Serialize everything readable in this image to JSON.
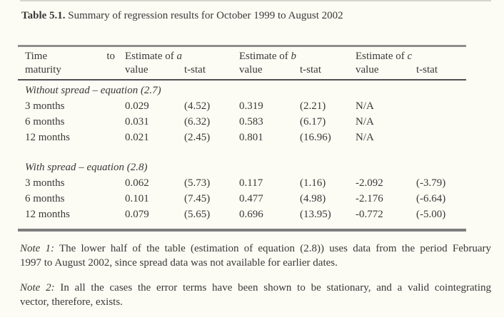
{
  "title": {
    "label": "Table 5.1.",
    "text": "Summary of regression results for October 1999 to August 2002"
  },
  "table": {
    "header": {
      "time": {
        "word1": "Time",
        "word2": "to",
        "line2": "maturity"
      },
      "groups": [
        {
          "label": "Estimate of",
          "var": "a"
        },
        {
          "label": "Estimate of",
          "var": "b"
        },
        {
          "label": "Estimate of",
          "var": "c"
        }
      ],
      "sub": {
        "value": "value",
        "tstat": "t-stat"
      }
    },
    "sections": [
      {
        "heading": "Without spread – equation (2.7)",
        "rows": [
          {
            "time": "3 months",
            "a_value": "0.029",
            "a_tstat": "(4.52)",
            "b_value": "0.319",
            "b_tstat": "(2.21)",
            "c_value": "N/A",
            "c_tstat": ""
          },
          {
            "time": "6 months",
            "a_value": "0.031",
            "a_tstat": "(6.32)",
            "b_value": "0.583",
            "b_tstat": "(6.17)",
            "c_value": "N/A",
            "c_tstat": ""
          },
          {
            "time": "12 months",
            "a_value": "0.021",
            "a_tstat": "(2.45)",
            "b_value": "0.801",
            "b_tstat": "(16.96)",
            "c_value": "N/A",
            "c_tstat": ""
          }
        ]
      },
      {
        "heading": "With spread – equation (2.8)",
        "rows": [
          {
            "time": "3 months",
            "a_value": "0.062",
            "a_tstat": "(5.73)",
            "b_value": "0.117",
            "b_tstat": "(1.16)",
            "c_value": "-2.092",
            "c_tstat": "(-3.79)"
          },
          {
            "time": "6 months",
            "a_value": "0.101",
            "a_tstat": "(7.45)",
            "b_value": "0.477",
            "b_tstat": "(4.98)",
            "c_value": "-2.176",
            "c_tstat": "(-6.64)"
          },
          {
            "time": "12 months",
            "a_value": "0.079",
            "a_tstat": "(5.65)",
            "b_value": "0.696",
            "b_tstat": "(13.95)",
            "c_value": "-0.772",
            "c_tstat": "(-5.00)"
          }
        ]
      }
    ]
  },
  "notes": [
    {
      "label": "Note 1:",
      "lines": [
        "The lower half of the table (estimation of equation (2.8)) uses data from the period February",
        "1997 to August 2002, since spread data was not available for earlier dates."
      ]
    },
    {
      "label": "Note 2:",
      "lines": [
        "In all the cases the error terms have been shown to be stationary, and a valid cointegrating",
        "vector, therefore, exists."
      ]
    }
  ],
  "colors": {
    "background": "#fdfcf4",
    "text": "#383838",
    "rule_top": "#8e8e8e",
    "rule_header": "#4f4f4f",
    "rule_bottom": "#7e7e7e"
  }
}
